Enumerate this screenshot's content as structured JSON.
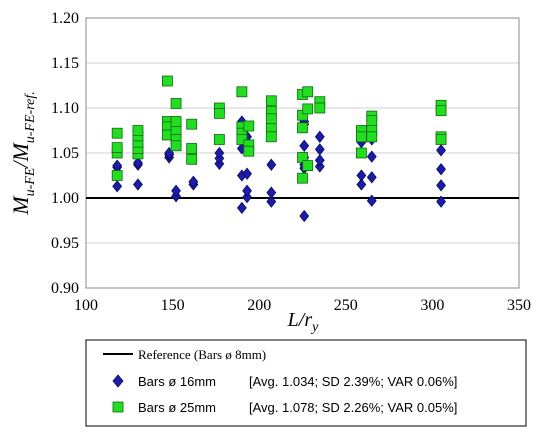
{
  "chart_data": {
    "type": "scatter",
    "xlabel_main": "L/r",
    "xlabel_sub": "y",
    "ylabel_main": "M",
    "ylabel_sub1": "u-FE",
    "ylabel_sep": "/M",
    "ylabel_sub2": "u-FE-ref.",
    "xlim": [
      100,
      350
    ],
    "ylim": [
      0.9,
      1.2
    ],
    "x_ticks": [
      "100",
      "150",
      "200",
      "250",
      "300",
      "350"
    ],
    "y_ticks": [
      "0.90",
      "0.95",
      "1.00",
      "1.05",
      "1.10",
      "1.15",
      "1.20"
    ],
    "grid": "horizontal",
    "legend_position": "below",
    "reference": {
      "name": "Reference (Bars ø 8mm)",
      "y": 1.0,
      "color": "#000000"
    },
    "series": [
      {
        "name": "Bars ø 16mm",
        "stats": "[Avg. 1.034; SD 2.39%; VAR 0.06%]",
        "marker": "diamond",
        "color": "#1c1ca8",
        "points": [
          [
            118,
            1.013
          ],
          [
            118,
            1.034
          ],
          [
            118,
            1.036
          ],
          [
            130,
            1.015
          ],
          [
            130,
            1.037
          ],
          [
            130,
            1.039
          ],
          [
            148,
            1.045
          ],
          [
            148,
            1.048
          ],
          [
            148,
            1.05
          ],
          [
            152,
            1.002
          ],
          [
            152,
            1.008
          ],
          [
            162,
            1.015
          ],
          [
            162,
            1.018
          ],
          [
            177,
            1.038
          ],
          [
            177,
            1.044
          ],
          [
            177,
            1.05
          ],
          [
            190,
            0.989
          ],
          [
            190,
            1.025
          ],
          [
            190,
            1.055
          ],
          [
            190,
            1.078
          ],
          [
            190,
            1.085
          ],
          [
            193,
            1.001
          ],
          [
            193,
            1.008
          ],
          [
            193,
            1.027
          ],
          [
            193,
            1.06
          ],
          [
            193,
            1.068
          ],
          [
            207,
            0.996
          ],
          [
            207,
            1.006
          ],
          [
            207,
            1.037
          ],
          [
            207,
            1.075
          ],
          [
            207,
            1.08
          ],
          [
            226,
            0.98
          ],
          [
            226,
            1.033
          ],
          [
            226,
            1.037
          ],
          [
            226,
            1.045
          ],
          [
            226,
            1.058
          ],
          [
            226,
            1.082
          ],
          [
            226,
            1.085
          ],
          [
            235,
            1.035
          ],
          [
            235,
            1.042
          ],
          [
            235,
            1.054
          ],
          [
            235,
            1.068
          ],
          [
            259,
            1.015
          ],
          [
            259,
            1.025
          ],
          [
            259,
            1.062
          ],
          [
            265,
            0.997
          ],
          [
            265,
            1.023
          ],
          [
            265,
            1.046
          ],
          [
            265,
            1.065
          ],
          [
            305,
            0.996
          ],
          [
            305,
            1.014
          ],
          [
            305,
            1.032
          ],
          [
            305,
            1.053
          ]
        ]
      },
      {
        "name": "Bars ø 25mm",
        "stats": "[Avg. 1.078; SD 2.26%; VAR 0.05%]",
        "marker": "square",
        "color": "#22dd22",
        "points": [
          [
            118,
            1.025
          ],
          [
            118,
            1.05
          ],
          [
            118,
            1.056
          ],
          [
            118,
            1.072
          ],
          [
            130,
            1.049
          ],
          [
            130,
            1.055
          ],
          [
            130,
            1.062
          ],
          [
            130,
            1.069
          ],
          [
            130,
            1.075
          ],
          [
            147,
            1.13
          ],
          [
            147,
            1.085
          ],
          [
            147,
            1.079
          ],
          [
            147,
            1.07
          ],
          [
            152,
            1.105
          ],
          [
            152,
            1.085
          ],
          [
            152,
            1.074
          ],
          [
            152,
            1.065
          ],
          [
            152,
            1.058
          ],
          [
            161,
            1.082
          ],
          [
            161,
            1.055
          ],
          [
            161,
            1.043
          ],
          [
            177,
            1.1
          ],
          [
            177,
            1.094
          ],
          [
            177,
            1.065
          ],
          [
            190,
            1.118
          ],
          [
            190,
            1.079
          ],
          [
            190,
            1.072
          ],
          [
            190,
            1.065
          ],
          [
            194,
            1.08
          ],
          [
            194,
            1.059
          ],
          [
            194,
            1.052
          ],
          [
            207,
            1.108
          ],
          [
            207,
            1.096
          ],
          [
            207,
            1.088
          ],
          [
            207,
            1.077
          ],
          [
            207,
            1.068
          ],
          [
            225,
            1.115
          ],
          [
            225,
            1.092
          ],
          [
            225,
            1.078
          ],
          [
            225,
            1.045
          ],
          [
            225,
            1.022
          ],
          [
            228,
            1.118
          ],
          [
            228,
            1.099
          ],
          [
            228,
            1.036
          ],
          [
            235,
            1.107
          ],
          [
            235,
            1.1
          ],
          [
            259,
            1.075
          ],
          [
            259,
            1.068
          ],
          [
            259,
            1.05
          ],
          [
            265,
            1.091
          ],
          [
            265,
            1.086
          ],
          [
            265,
            1.075
          ],
          [
            265,
            1.068
          ],
          [
            305,
            1.103
          ],
          [
            305,
            1.097
          ],
          [
            305,
            1.068
          ],
          [
            305,
            1.065
          ]
        ]
      }
    ]
  }
}
